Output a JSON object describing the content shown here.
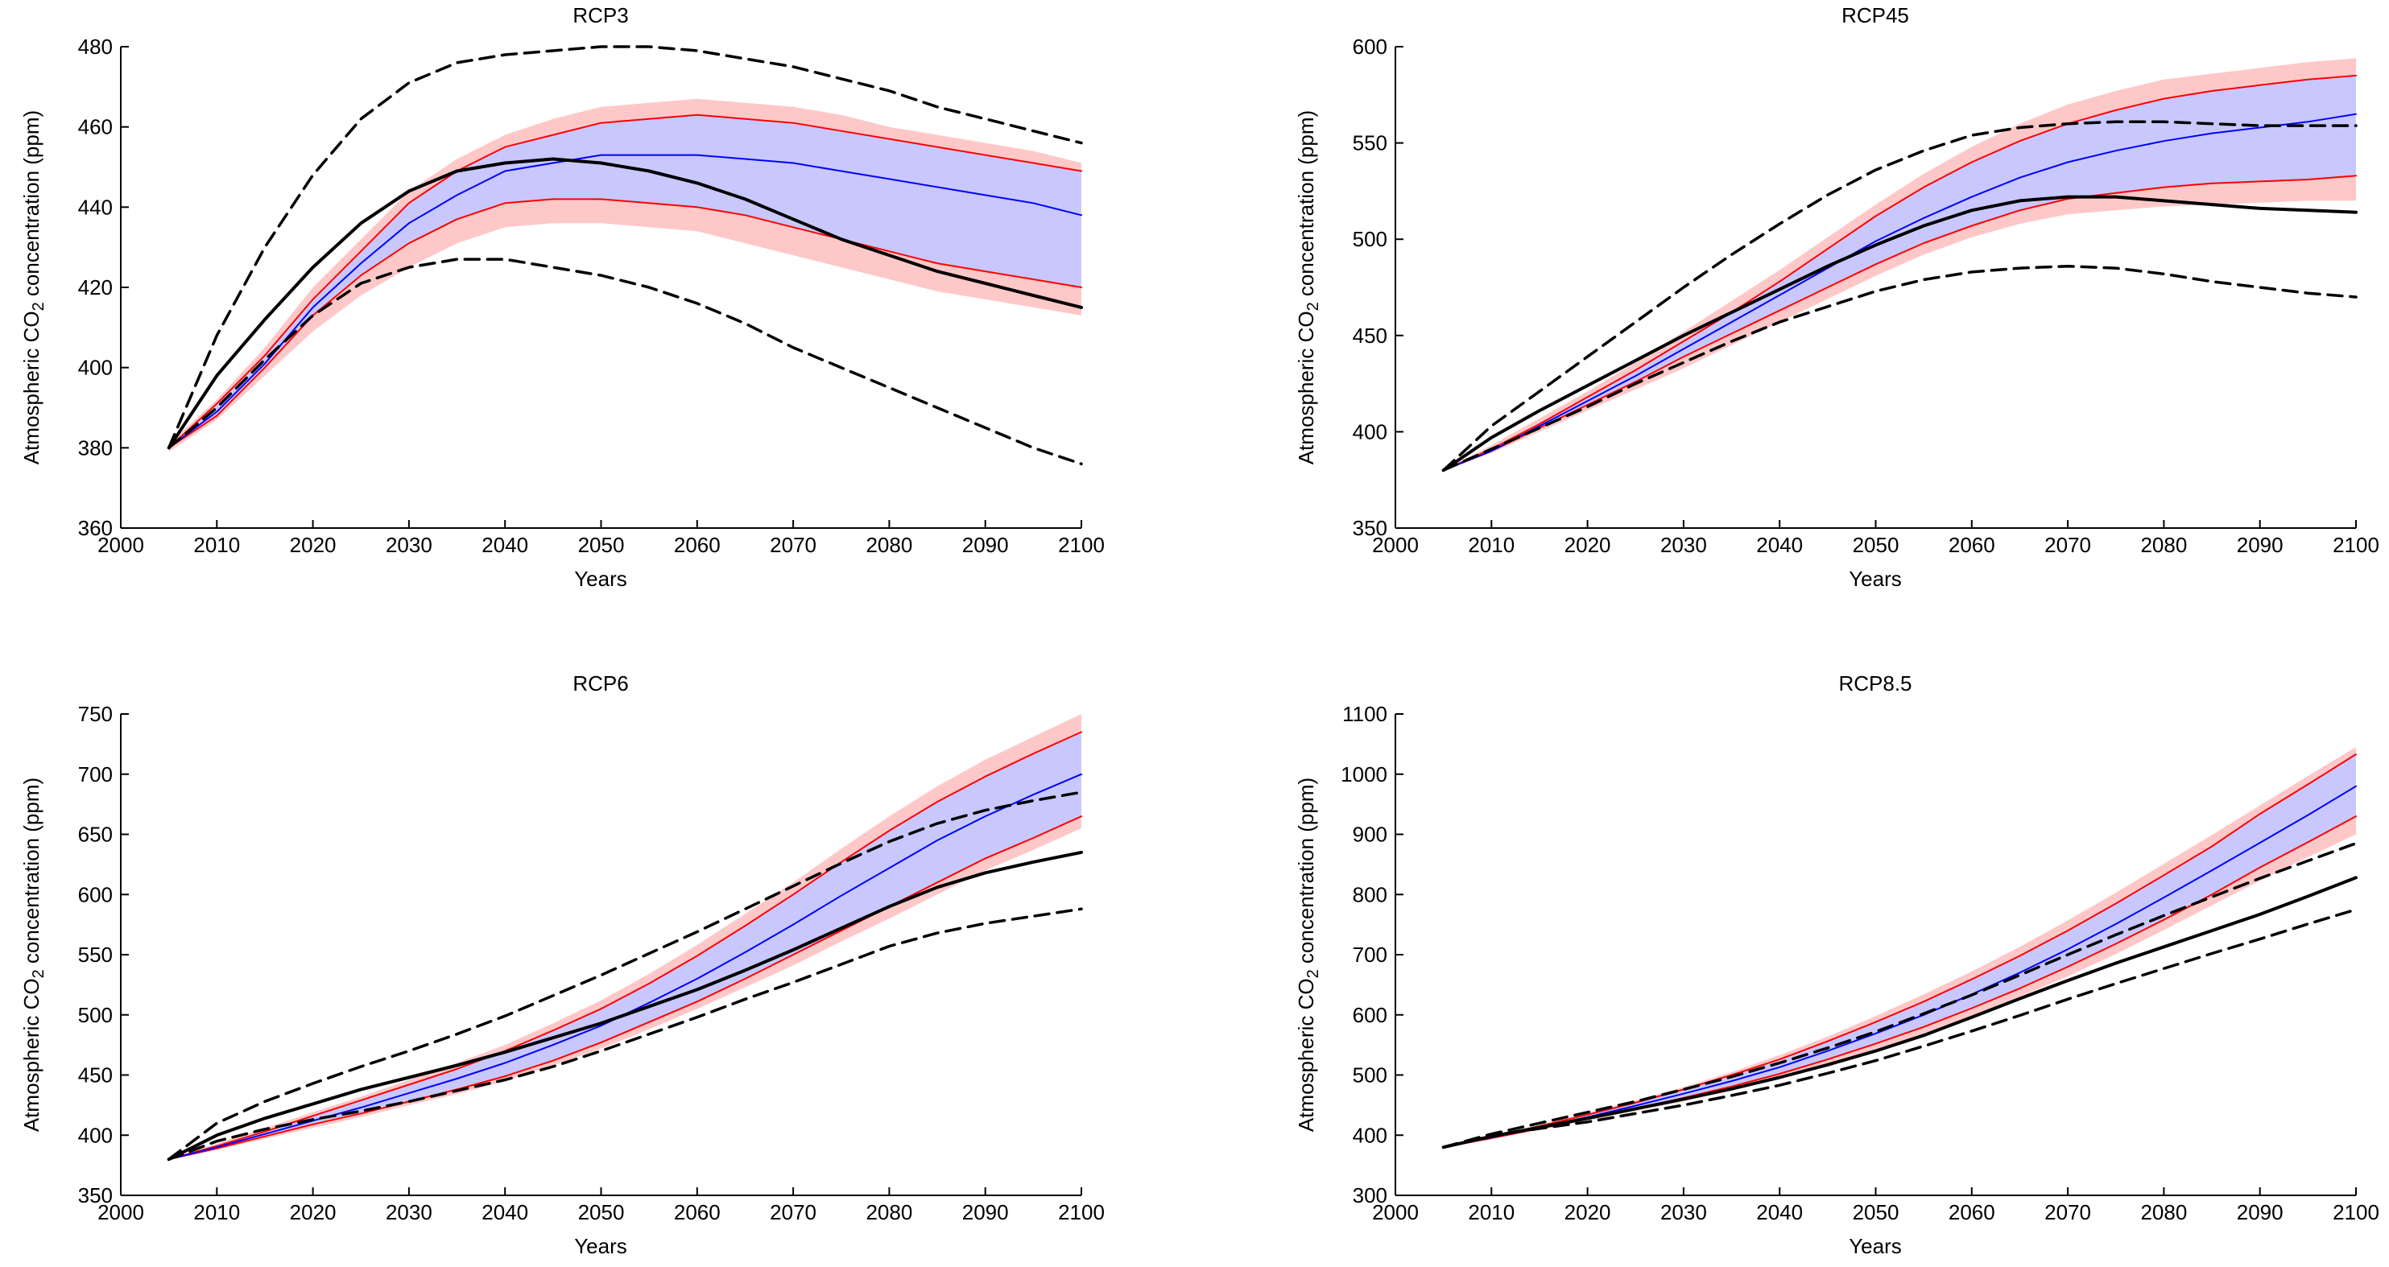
{
  "colors": {
    "background": "#ffffff",
    "axis": "#000000",
    "median": "#0000ff",
    "median_band": "#c8c8ff",
    "bounds": "#ff0000",
    "outer_band": "#ffc8c8",
    "reference": "#000000"
  },
  "chart_data": [
    {
      "type": "line",
      "title": "RCP3",
      "xlabel": "Years",
      "ylabel_parts": [
        "Atmospheric CO",
        "2",
        " concentration (ppm)"
      ],
      "xlim": [
        2000,
        2100
      ],
      "ylim": [
        360,
        480
      ],
      "xticks": [
        2000,
        2010,
        2020,
        2030,
        2040,
        2050,
        2060,
        2070,
        2080,
        2090,
        2100
      ],
      "yticks": [
        360,
        380,
        400,
        420,
        440,
        460,
        480
      ],
      "x": [
        2005,
        2010,
        2015,
        2020,
        2025,
        2030,
        2035,
        2040,
        2045,
        2050,
        2055,
        2060,
        2065,
        2070,
        2075,
        2080,
        2085,
        2090,
        2095,
        2100
      ],
      "series": [
        {
          "name": "outer_upper",
          "role": "outer-band-upper",
          "values": [
            381,
            392,
            405,
            420,
            432,
            444,
            452,
            458,
            462,
            465,
            466,
            467,
            466,
            465,
            463,
            460,
            458,
            456,
            454,
            451
          ]
        },
        {
          "name": "outer_lower",
          "role": "outer-band-lower",
          "values": [
            379,
            387,
            398,
            409,
            418,
            425,
            431,
            435,
            436,
            436,
            435,
            434,
            431,
            428,
            425,
            422,
            419,
            417,
            415,
            413
          ]
        },
        {
          "name": "upper",
          "role": "upper-bound",
          "values": [
            380,
            391,
            403,
            417,
            429,
            441,
            449,
            455,
            458,
            461,
            462,
            463,
            462,
            461,
            459,
            457,
            455,
            453,
            451,
            449
          ]
        },
        {
          "name": "lower",
          "role": "lower-bound",
          "values": [
            380,
            388,
            400,
            413,
            423,
            431,
            437,
            441,
            442,
            442,
            441,
            440,
            438,
            435,
            432,
            429,
            426,
            424,
            422,
            420
          ]
        },
        {
          "name": "median",
          "role": "median",
          "values": [
            380,
            389,
            401,
            415,
            426,
            436,
            443,
            449,
            451,
            453,
            453,
            453,
            452,
            451,
            449,
            447,
            445,
            443,
            441,
            438
          ]
        },
        {
          "name": "reference",
          "role": "reference-solid",
          "values": [
            380,
            398,
            412,
            425,
            436,
            444,
            449,
            451,
            452,
            451,
            449,
            446,
            442,
            437,
            432,
            428,
            424,
            421,
            418,
            415
          ]
        },
        {
          "name": "reference_upper",
          "role": "reference-dashed",
          "values": [
            380,
            408,
            430,
            448,
            462,
            471,
            476,
            478,
            479,
            480,
            480,
            479,
            477,
            475,
            472,
            469,
            465,
            462,
            459,
            456
          ]
        },
        {
          "name": "reference_lower",
          "role": "reference-dashed",
          "values": [
            380,
            390,
            402,
            413,
            421,
            425,
            427,
            427,
            425,
            423,
            420,
            416,
            411,
            405,
            400,
            395,
            390,
            385,
            380,
            376
          ]
        }
      ]
    },
    {
      "type": "line",
      "title": "RCP45",
      "xlabel": "Years",
      "ylabel_parts": [
        "Atmospheric CO",
        "2",
        " concentration (ppm)"
      ],
      "xlim": [
        2000,
        2100
      ],
      "ylim": [
        350,
        600
      ],
      "xticks": [
        2000,
        2010,
        2020,
        2030,
        2040,
        2050,
        2060,
        2070,
        2080,
        2090,
        2100
      ],
      "yticks": [
        350,
        400,
        450,
        500,
        550,
        600
      ],
      "x": [
        2005,
        2010,
        2015,
        2020,
        2025,
        2030,
        2035,
        2040,
        2045,
        2050,
        2055,
        2060,
        2065,
        2070,
        2075,
        2080,
        2085,
        2090,
        2095,
        2100
      ],
      "series": [
        {
          "name": "outer_upper",
          "role": "outer-band-upper",
          "values": [
            380,
            393,
            407,
            421,
            436,
            452,
            468,
            484,
            501,
            518,
            534,
            548,
            560,
            570,
            577,
            583,
            586,
            589,
            592,
            594
          ]
        },
        {
          "name": "outer_lower",
          "role": "outer-band-lower",
          "values": [
            380,
            389,
            400,
            411,
            422,
            433,
            445,
            457,
            469,
            481,
            492,
            501,
            508,
            513,
            515,
            517,
            518,
            519,
            520,
            520
          ]
        },
        {
          "name": "upper",
          "role": "upper-bound",
          "values": [
            380,
            391,
            404,
            418,
            432,
            447,
            462,
            478,
            495,
            512,
            527,
            540,
            551,
            560,
            567,
            573,
            577,
            580,
            583,
            585
          ]
        },
        {
          "name": "lower",
          "role": "lower-bound",
          "values": [
            380,
            390,
            402,
            414,
            426,
            439,
            451,
            463,
            475,
            487,
            498,
            507,
            515,
            521,
            524,
            527,
            529,
            530,
            531,
            533
          ]
        },
        {
          "name": "median",
          "role": "median",
          "values": [
            380,
            390,
            403,
            416,
            429,
            443,
            457,
            471,
            485,
            499,
            511,
            522,
            532,
            540,
            546,
            551,
            555,
            558,
            561,
            565
          ]
        },
        {
          "name": "reference",
          "role": "reference-solid",
          "values": [
            380,
            397,
            411,
            424,
            437,
            450,
            462,
            474,
            486,
            497,
            507,
            515,
            520,
            522,
            522,
            520,
            518,
            516,
            515,
            514
          ]
        },
        {
          "name": "reference_upper",
          "role": "reference-dashed",
          "values": [
            380,
            403,
            421,
            439,
            457,
            475,
            492,
            508,
            523,
            536,
            546,
            554,
            558,
            560,
            561,
            561,
            560,
            559,
            559,
            559
          ]
        },
        {
          "name": "reference_lower",
          "role": "reference-dashed",
          "values": [
            380,
            391,
            402,
            413,
            425,
            436,
            447,
            457,
            465,
            473,
            479,
            483,
            485,
            486,
            485,
            482,
            478,
            475,
            472,
            470
          ]
        }
      ]
    },
    {
      "type": "line",
      "title": "RCP6",
      "xlabel": "Years",
      "ylabel_parts": [
        "Atmospheric CO",
        "2",
        " concentration (ppm)"
      ],
      "xlim": [
        2000,
        2100
      ],
      "ylim": [
        350,
        750
      ],
      "xticks": [
        2000,
        2010,
        2020,
        2030,
        2040,
        2050,
        2060,
        2070,
        2080,
        2090,
        2100
      ],
      "yticks": [
        350,
        400,
        450,
        500,
        550,
        600,
        650,
        700,
        750
      ],
      "x": [
        2005,
        2010,
        2015,
        2020,
        2025,
        2030,
        2035,
        2040,
        2045,
        2050,
        2055,
        2060,
        2065,
        2070,
        2075,
        2080,
        2085,
        2090,
        2095,
        2100
      ],
      "series": [
        {
          "name": "outer_upper",
          "role": "outer-band-upper",
          "values": [
            380,
            393,
            406,
            419,
            432,
            446,
            460,
            475,
            493,
            512,
            534,
            558,
            584,
            610,
            638,
            665,
            690,
            712,
            731,
            750
          ]
        },
        {
          "name": "outer_lower",
          "role": "outer-band-lower",
          "values": [
            380,
            388,
            397,
            406,
            415,
            425,
            434,
            445,
            458,
            472,
            488,
            505,
            523,
            541,
            561,
            580,
            600,
            620,
            637,
            655
          ]
        },
        {
          "name": "upper",
          "role": "upper-bound",
          "values": [
            380,
            391,
            403,
            416,
            429,
            442,
            455,
            470,
            487,
            505,
            526,
            549,
            574,
            600,
            627,
            653,
            677,
            698,
            717,
            735
          ]
        },
        {
          "name": "lower",
          "role": "lower-bound",
          "values": [
            380,
            389,
            399,
            409,
            418,
            428,
            438,
            449,
            462,
            477,
            494,
            511,
            530,
            550,
            570,
            590,
            610,
            630,
            647,
            665
          ]
        },
        {
          "name": "median",
          "role": "median",
          "values": [
            380,
            390,
            401,
            412,
            423,
            435,
            447,
            460,
            475,
            491,
            510,
            530,
            552,
            575,
            599,
            622,
            645,
            665,
            683,
            700
          ]
        },
        {
          "name": "reference",
          "role": "reference-solid",
          "values": [
            380,
            400,
            414,
            426,
            438,
            448,
            458,
            469,
            481,
            493,
            507,
            521,
            537,
            554,
            572,
            590,
            606,
            618,
            627,
            635
          ]
        },
        {
          "name": "reference_upper",
          "role": "reference-dashed",
          "values": [
            380,
            410,
            428,
            443,
            457,
            470,
            484,
            499,
            516,
            533,
            551,
            569,
            588,
            607,
            626,
            644,
            659,
            670,
            678,
            685
          ]
        },
        {
          "name": "reference_lower",
          "role": "reference-dashed",
          "values": [
            380,
            395,
            405,
            413,
            420,
            428,
            437,
            446,
            457,
            470,
            484,
            498,
            513,
            527,
            542,
            557,
            568,
            576,
            582,
            588
          ]
        }
      ]
    },
    {
      "type": "line",
      "title": "RCP8.5",
      "xlabel": "Years",
      "ylabel_parts": [
        "Atmospheric CO",
        "2",
        " concentration (ppm)"
      ],
      "xlim": [
        2000,
        2100
      ],
      "ylim": [
        300,
        1100
      ],
      "xticks": [
        2000,
        2010,
        2020,
        2030,
        2040,
        2050,
        2060,
        2070,
        2080,
        2090,
        2100
      ],
      "yticks": [
        300,
        400,
        500,
        600,
        700,
        800,
        900,
        1000,
        1100
      ],
      "x": [
        2005,
        2010,
        2015,
        2020,
        2025,
        2030,
        2035,
        2040,
        2045,
        2050,
        2055,
        2060,
        2065,
        2070,
        2075,
        2080,
        2085,
        2090,
        2095,
        2100
      ],
      "series": [
        {
          "name": "outer_upper",
          "role": "outer-band-upper",
          "values": [
            380,
            398,
            417,
            437,
            458,
            480,
            505,
            533,
            564,
            598,
            634,
            672,
            713,
            757,
            803,
            851,
            899,
            948,
            997,
            1045
          ]
        },
        {
          "name": "outer_lower",
          "role": "outer-band-lower",
          "values": [
            380,
            394,
            409,
            424,
            440,
            456,
            474,
            494,
            517,
            542,
            569,
            598,
            630,
            664,
            701,
            741,
            782,
            823,
            862,
            900
          ]
        },
        {
          "name": "upper",
          "role": "upper-bound",
          "values": [
            380,
            397,
            415,
            434,
            454,
            476,
            500,
            526,
            556,
            588,
            622,
            659,
            698,
            740,
            785,
            832,
            880,
            934,
            983,
            1033
          ]
        },
        {
          "name": "lower",
          "role": "lower-bound",
          "values": [
            380,
            395,
            411,
            427,
            444,
            462,
            481,
            502,
            526,
            552,
            580,
            611,
            644,
            680,
            718,
            758,
            800,
            845,
            887,
            930
          ]
        },
        {
          "name": "median",
          "role": "median",
          "values": [
            380,
            396,
            413,
            430,
            449,
            469,
            490,
            513,
            540,
            569,
            600,
            634,
            670,
            709,
            751,
            795,
            840,
            886,
            932,
            980
          ]
        },
        {
          "name": "reference",
          "role": "reference-solid",
          "values": [
            380,
            398,
            413,
            428,
            444,
            460,
            477,
            496,
            517,
            540,
            566,
            596,
            627,
            657,
            686,
            713,
            740,
            767,
            797,
            828
          ]
        },
        {
          "name": "reference_upper",
          "role": "reference-dashed",
          "values": [
            380,
            402,
            420,
            438,
            456,
            476,
            497,
            520,
            545,
            572,
            602,
            633,
            666,
            700,
            733,
            765,
            796,
            827,
            856,
            885
          ]
        },
        {
          "name": "reference_lower",
          "role": "reference-dashed",
          "values": [
            380,
            400,
            411,
            422,
            436,
            450,
            466,
            483,
            503,
            524,
            548,
            573,
            599,
            626,
            652,
            677,
            702,
            726,
            751,
            775
          ]
        }
      ]
    }
  ]
}
